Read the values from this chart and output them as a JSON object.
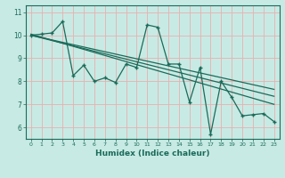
{
  "title": "",
  "xlabel": "Humidex (Indice chaleur)",
  "ylabel": "",
  "bg_color": "#c8eae4",
  "grid_color": "#e8b0b0",
  "line_color": "#1a6b5a",
  "xlim": [
    -0.5,
    23.5
  ],
  "ylim": [
    5.5,
    11.3
  ],
  "xticks": [
    0,
    1,
    2,
    3,
    4,
    5,
    6,
    7,
    8,
    9,
    10,
    11,
    12,
    13,
    14,
    15,
    16,
    17,
    18,
    19,
    20,
    21,
    22,
    23
  ],
  "yticks": [
    6,
    7,
    8,
    9,
    10,
    11
  ],
  "zigzag_x": [
    0,
    1,
    2,
    3,
    4,
    5,
    6,
    7,
    8,
    9,
    10,
    11,
    12,
    13,
    14,
    15,
    16,
    17,
    18,
    19,
    20,
    21,
    22,
    23
  ],
  "zigzag_y": [
    10.0,
    10.05,
    10.1,
    10.6,
    8.25,
    8.7,
    8.0,
    8.15,
    7.95,
    8.75,
    8.6,
    10.45,
    10.35,
    8.75,
    8.75,
    7.1,
    8.6,
    5.7,
    8.0,
    7.3,
    6.5,
    6.55,
    6.6,
    6.25
  ],
  "line1_x": [
    0,
    23
  ],
  "line1_y": [
    10.0,
    7.65
  ],
  "line2_x": [
    0,
    23
  ],
  "line2_y": [
    10.0,
    7.35
  ],
  "line3_x": [
    0,
    23
  ],
  "line3_y": [
    10.05,
    7.0
  ]
}
